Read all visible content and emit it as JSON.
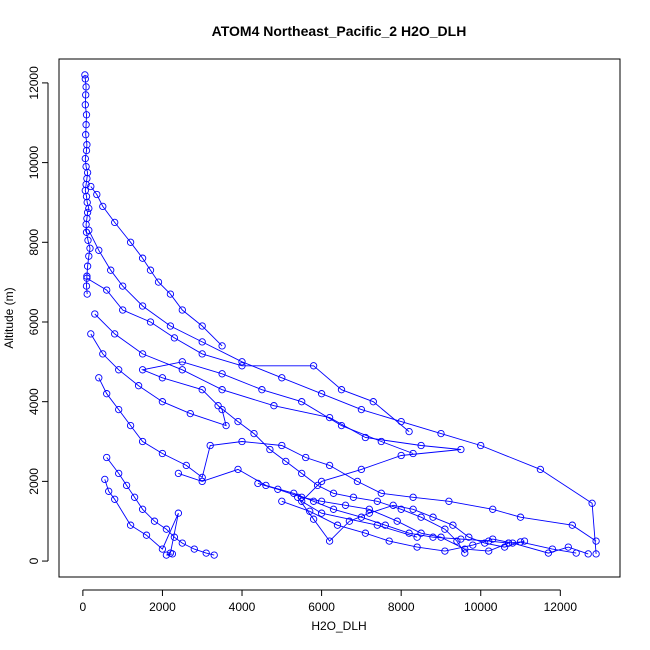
{
  "chart_data": {
    "type": "line",
    "title": "ATOM4 Northeast_Pacific_2 H2O_DLH",
    "xlabel": "H2O_DLH",
    "ylabel": "Altitude (m)",
    "xlim": [
      -600,
      13500
    ],
    "ylim": [
      -400,
      12600
    ],
    "xticks": [
      0,
      2000,
      4000,
      6000,
      8000,
      10000,
      12000
    ],
    "yticks": [
      0,
      2000,
      4000,
      6000,
      8000,
      10000,
      12000
    ],
    "grid": false,
    "legend": "none",
    "marker": "open-circle",
    "colors": {
      "series": "#0000ff",
      "axis": "#000000"
    },
    "series": [
      {
        "x": [
          50,
          60,
          80,
          70,
          60,
          90,
          80,
          70,
          100,
          90,
          60,
          80,
          120,
          100,
          80,
          60,
          90,
          110,
          150,
          120,
          100,
          80,
          90,
          130,
          180,
          150,
          120,
          100,
          90,
          110
        ],
        "y": [
          12200,
          12100,
          11900,
          11700,
          11450,
          11200,
          10950,
          10700,
          10450,
          10300,
          10100,
          9900,
          9750,
          9600,
          9450,
          9300,
          9150,
          9000,
          8850,
          8750,
          8600,
          8450,
          8250,
          8050,
          7850,
          7650,
          7400,
          7150,
          6900,
          6700
        ]
      },
      {
        "x": [
          200,
          350,
          500,
          800,
          1200,
          1500,
          1700,
          1900,
          2200,
          2500,
          3000,
          3500
        ],
        "y": [
          9400,
          9200,
          8900,
          8500,
          8000,
          7600,
          7300,
          7000,
          6700,
          6300,
          5900,
          5400
        ]
      },
      {
        "x": [
          150,
          400,
          700,
          1000,
          1500,
          2200,
          3000,
          4000,
          5000,
          6000,
          7000,
          8000,
          9000,
          10000,
          11500,
          12800,
          12900
        ],
        "y": [
          8300,
          7800,
          7300,
          6900,
          6400,
          5900,
          5500,
          5000,
          4600,
          4200,
          3800,
          3500,
          3200,
          2900,
          2300,
          1450,
          180
        ]
      },
      {
        "x": [
          100,
          600,
          1000,
          1700,
          2300,
          3000,
          4000,
          5800,
          6500,
          7300,
          8200
        ],
        "y": [
          7100,
          6800,
          6300,
          6000,
          5600,
          5200,
          4900,
          4900,
          4300,
          4000,
          3250
        ]
      },
      {
        "x": [
          300,
          800,
          1500,
          2500,
          3500,
          4800,
          6200,
          7100,
          8500,
          9500,
          8000,
          7000,
          6000,
          5500,
          6000,
          7400,
          8400
        ],
        "y": [
          6200,
          5700,
          5200,
          4800,
          4300,
          3900,
          3600,
          3100,
          2900,
          2800,
          2650,
          2300,
          2000,
          1500,
          1200,
          900,
          600
        ]
      },
      {
        "x": [
          200,
          500,
          900,
          1400,
          2000,
          2700,
          3600,
          3500,
          3000,
          2000,
          1500,
          2500,
          3500,
          4500,
          5500,
          6500,
          7500,
          8300
        ],
        "y": [
          5700,
          5200,
          4800,
          4400,
          4000,
          3700,
          3400,
          3800,
          4300,
          4600,
          4800,
          5000,
          4700,
          4300,
          4000,
          3400,
          3000,
          2700
        ]
      },
      {
        "x": [
          400,
          600,
          900,
          1200,
          1500,
          2000,
          2600,
          3000,
          3200,
          4000,
          5000,
          5600,
          6200,
          6900,
          7500,
          8300,
          9200,
          10300,
          11000,
          12300,
          12900
        ],
        "y": [
          4600,
          4200,
          3800,
          3400,
          3000,
          2700,
          2400,
          2100,
          2900,
          3000,
          2900,
          2600,
          2400,
          2000,
          1700,
          1600,
          1500,
          1300,
          1100,
          900,
          500
        ]
      },
      {
        "x": [
          600,
          900,
          1100,
          1300,
          1500,
          1800,
          2100,
          2300,
          2500,
          2800,
          3100,
          3300
        ],
        "y": [
          2600,
          2200,
          1900,
          1600,
          1300,
          1000,
          800,
          600,
          450,
          300,
          200,
          150
        ]
      },
      {
        "x": [
          550,
          650,
          800,
          1200,
          1600,
          2000,
          2400,
          2200,
          2100,
          2250
        ],
        "y": [
          2050,
          1750,
          1550,
          900,
          650,
          300,
          1200,
          200,
          150,
          180
        ]
      },
      {
        "x": [
          2400,
          3000,
          3900,
          4600,
          5300,
          5800,
          6300,
          7000,
          7600,
          8200,
          8800,
          9500,
          10200,
          10700,
          11000,
          11800,
          12400
        ],
        "y": [
          2200,
          2000,
          2300,
          1900,
          1700,
          1500,
          1300,
          1100,
          900,
          700,
          600,
          550,
          500,
          450,
          480,
          300,
          200
        ]
      },
      {
        "x": [
          4400,
          4900,
          5500,
          6000,
          6600,
          7200,
          7900,
          8500,
          9000,
          9600,
          10200,
          10700
        ],
        "y": [
          1950,
          1800,
          1600,
          1500,
          1400,
          1300,
          1000,
          700,
          600,
          300,
          250,
          450
        ]
      },
      {
        "x": [
          5000,
          5700,
          6400,
          7100,
          7700,
          8400,
          9100,
          9800,
          10300,
          10800,
          11700,
          12200,
          12700
        ],
        "y": [
          1500,
          1250,
          900,
          700,
          500,
          350,
          250,
          400,
          550,
          450,
          200,
          350,
          180
        ]
      },
      {
        "x": [
          5400,
          5800,
          6200,
          6700,
          7200,
          7800,
          8300,
          8800,
          9300,
          9700,
          10100,
          10600,
          11100
        ],
        "y": [
          1600,
          1050,
          500,
          1000,
          1200,
          1400,
          1300,
          1100,
          900,
          600,
          450,
          350,
          500
        ]
      },
      {
        "x": [
          3400,
          3900,
          4300,
          4700,
          5100,
          5500,
          5900,
          6300,
          6800,
          7400,
          8000,
          8500,
          9100,
          9400,
          9600
        ],
        "y": [
          3900,
          3500,
          3200,
          2800,
          2500,
          2200,
          1900,
          1700,
          1600,
          1500,
          1300,
          1100,
          800,
          500,
          200
        ]
      }
    ]
  }
}
